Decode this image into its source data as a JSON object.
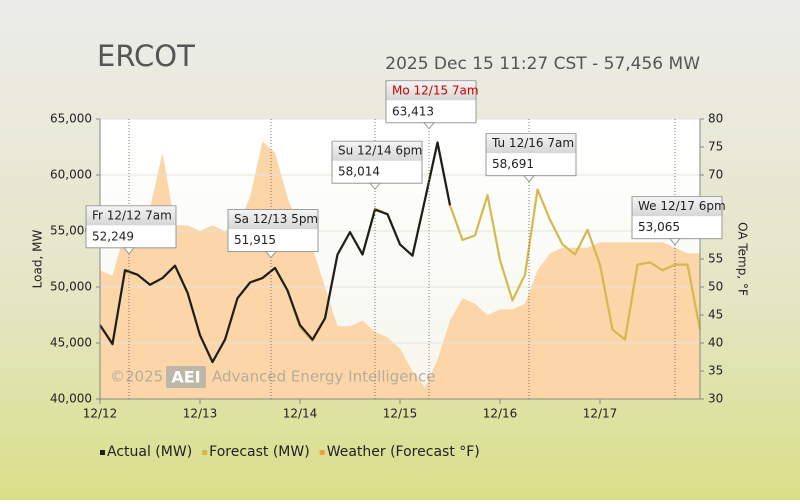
{
  "chart_data": {
    "type": "line",
    "title": "ERCOT",
    "subtitle": "2025 Dec 15 11:27 CST - 57,456 MW",
    "y_label": "Load, MW",
    "y2_label": "OA Temp, °F",
    "watermark": {
      "copyright": "©2025",
      "logo": "AEI",
      "name": "Advanced Energy Intelligence"
    },
    "x": [
      12,
      12.125,
      12.25,
      12.375,
      12.5,
      12.625,
      12.75,
      12.875,
      13,
      13.125,
      13.25,
      13.375,
      13.5,
      13.625,
      13.75,
      13.875,
      14,
      14.125,
      14.25,
      14.375,
      14.5,
      14.625,
      14.75,
      14.875,
      15,
      15.125,
      15.25,
      15.375,
      15.5,
      15.625,
      15.75,
      15.875,
      16,
      16.125,
      16.25,
      16.375,
      16.5,
      16.625,
      16.75,
      16.875,
      17,
      17.125,
      17.25,
      17.375,
      17.5,
      17.625,
      17.75,
      17.875,
      18
    ],
    "xlim": [
      12,
      18
    ],
    "xticks": [
      {
        "value": 12,
        "label": "12/12"
      },
      {
        "value": 13,
        "label": "12/13"
      },
      {
        "value": 14,
        "label": "12/14"
      },
      {
        "value": 15,
        "label": "12/15"
      },
      {
        "value": 16,
        "label": "12/16"
      },
      {
        "value": 17,
        "label": "12/17"
      }
    ],
    "ylim": [
      40000,
      65000
    ],
    "yticks": [
      {
        "value": 40000,
        "label": "40,000"
      },
      {
        "value": 45000,
        "label": "45,000"
      },
      {
        "value": 50000,
        "label": "50,000"
      },
      {
        "value": 55000,
        "label": "55,000"
      },
      {
        "value": 60000,
        "label": "60,000"
      },
      {
        "value": 65000,
        "label": "65,000"
      }
    ],
    "y2lim": [
      30,
      80
    ],
    "y2ticks": [
      30,
      35,
      40,
      45,
      50,
      55,
      60,
      65,
      70,
      75,
      80
    ],
    "grid": true,
    "series": [
      {
        "name": "Weather (Forecast °F)",
        "color": "#fcd5a8",
        "axis": "y2",
        "style": "area",
        "values": [
          53,
          52,
          60,
          62,
          64,
          74,
          61,
          61,
          60,
          61,
          60,
          61,
          66,
          76,
          74,
          66,
          60,
          57,
          50,
          43,
          43,
          44,
          42,
          41,
          39,
          35,
          32,
          37,
          44,
          48,
          47,
          45,
          46,
          46,
          47,
          53,
          56,
          57,
          57,
          57,
          58,
          58,
          58,
          58,
          58,
          58,
          57,
          56,
          56
        ]
      },
      {
        "name": "Forecast (MW)",
        "color": "#d6b84e",
        "style": "line",
        "values": [
          46600,
          45000,
          51400,
          51100,
          50200,
          50800,
          51900,
          49500,
          45700,
          43300,
          45300,
          49000,
          50400,
          50800,
          51700,
          49700,
          46400,
          45200,
          47200,
          52900,
          54900,
          52900,
          57000,
          56500,
          53800,
          52800,
          57800,
          62900,
          57300,
          54200,
          54600,
          58200,
          52400,
          48800,
          51100,
          58700,
          56000,
          53800,
          52900,
          55100,
          52000,
          46200,
          45300,
          52000,
          52200,
          51500,
          52000,
          52000,
          46200
        ]
      },
      {
        "name": "Actual (MW)",
        "color": "#1e1e1e",
        "style": "line",
        "values": [
          46600,
          44900,
          51500,
          51100,
          50200,
          50800,
          51900,
          49500,
          45700,
          43300,
          45300,
          49000,
          50400,
          50800,
          51700,
          49700,
          46600,
          45300,
          47200,
          52900,
          54900,
          52900,
          56900,
          56500,
          53800,
          52800,
          57800,
          62900,
          57300,
          null,
          null,
          null,
          null,
          null,
          null,
          null,
          null,
          null,
          null,
          null,
          null,
          null,
          null,
          null,
          null,
          null,
          null,
          null,
          null
        ]
      }
    ],
    "legend_order": [
      2,
      1,
      0
    ],
    "annotations": [
      {
        "label": "Fr 12/12 7am",
        "x": 12.29,
        "value": 52249,
        "value_label": "52,249",
        "label_color": "#222222"
      },
      {
        "label": "Sa 12/13 5pm",
        "x": 13.71,
        "value": 51915,
        "value_label": "51,915",
        "label_color": "#222222"
      },
      {
        "label": "Su 12/14 6pm",
        "x": 14.75,
        "value": 58014,
        "value_label": "58,014",
        "label_color": "#222222"
      },
      {
        "label": "Mo 12/15 7am",
        "x": 15.29,
        "value": 63413,
        "value_label": "63,413",
        "label_color": "#cc0000"
      },
      {
        "label": "Tu 12/16 7am",
        "x": 16.29,
        "value": 58691,
        "value_label": "58,691",
        "label_color": "#222222"
      },
      {
        "label": "We 12/17 6pm",
        "x": 17.75,
        "value": 53065,
        "value_label": "53,065",
        "label_color": "#222222"
      }
    ]
  }
}
